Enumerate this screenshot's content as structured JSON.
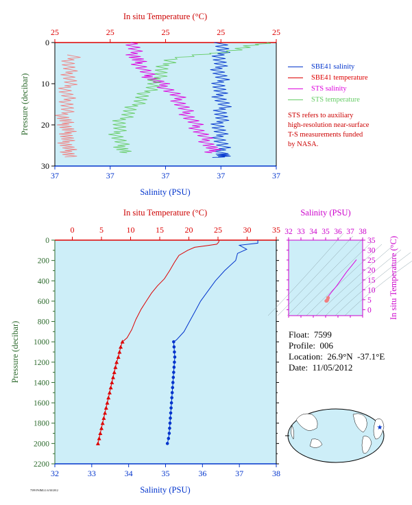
{
  "colors": {
    "plot_bg": "#cdeef8",
    "temperature": "#dd0000",
    "salinity": "#0033cc",
    "sts_salinity": "#dd00dd",
    "sts_temperature": "#66cc66",
    "sbe_temp_top": "#f08080",
    "pressure_label": "#2d6a2d",
    "ts_axis": "#cc00cc"
  },
  "top_panel": {
    "top_axis_title": "In situ Temperature (°C)",
    "top_ticks": [
      "25",
      "25",
      "25",
      "25",
      "25"
    ],
    "left_axis_title": "Pressure (decibar)",
    "left_ticks": [
      "0",
      "10",
      "20",
      "30"
    ],
    "bottom_axis_title": "Salinity (PSU)",
    "bottom_ticks": [
      "37",
      "37",
      "37",
      "37",
      "37"
    ]
  },
  "legend": [
    {
      "label": "SBE41 salinity",
      "color": "#0033cc"
    },
    {
      "label": "SBE41 temperature",
      "color": "#dd0000"
    },
    {
      "label": "STS salinity",
      "color": "#dd00dd"
    },
    {
      "label": "STS temperature",
      "color": "#66cc66"
    }
  ],
  "note": [
    "STS refers to auxiliary",
    "high-resolution near-surface",
    "T-S measurements funded",
    "by NASA."
  ],
  "info": {
    "float": "Float:  7599",
    "profile": "Profile:  006",
    "location": "Location:  26.9°N  -37.1°E",
    "date": "Date:  11/05/2012"
  },
  "footer_text": "7599 PSIMLG 6/30/2012",
  "chart_data": [
    {
      "type": "line",
      "title": "",
      "xlabel": "Salinity (PSU)",
      "ylabel": "Pressure (decibar)",
      "x2label": "In situ Temperature (°C)",
      "ylim": [
        0,
        30
      ],
      "y_inverted": true,
      "series": [
        {
          "name": "SBE41 salinity",
          "x_frac": [
            0.76,
            0.75,
            0.74,
            0.75,
            0.74,
            0.76,
            0.75,
            0.74,
            0.75,
            0.76,
            0.75
          ],
          "y": [
            0,
            3,
            6,
            9,
            12,
            15,
            18,
            21,
            24,
            27,
            28
          ]
        },
        {
          "name": "SBE41 temperature",
          "x_frac": [
            0.08,
            0.06,
            0.07,
            0.05,
            0.06,
            0.04,
            0.05,
            0.06,
            0.05,
            0.06,
            0.07
          ],
          "y": [
            3,
            6,
            9,
            12,
            15,
            18,
            20,
            22,
            24,
            26,
            28
          ]
        },
        {
          "name": "STS salinity",
          "x_frac": [
            0.35,
            0.36,
            0.38,
            0.42,
            0.48,
            0.55,
            0.58,
            0.62,
            0.66,
            0.7,
            0.72
          ],
          "y": [
            0,
            3,
            5,
            8,
            10,
            13,
            16,
            19,
            22,
            25,
            27
          ]
        },
        {
          "name": "STS temperature",
          "x_frac": [
            0.95,
            0.8,
            0.52,
            0.48,
            0.45,
            0.4,
            0.35,
            0.3,
            0.28,
            0.3,
            0.32
          ],
          "y": [
            0,
            2,
            4,
            7,
            10,
            13,
            16,
            19,
            22,
            25,
            27
          ]
        }
      ]
    },
    {
      "type": "line",
      "title": "",
      "xlabel": "Salinity (PSU)",
      "x2label": "In situ Temperature (°C)",
      "ylabel": "Pressure (decibar)",
      "xlim": [
        32,
        38
      ],
      "x2lim": [
        -3,
        35
      ],
      "ylim": [
        0,
        2200
      ],
      "y_inverted": true,
      "x_ticks": [
        "32",
        "33",
        "34",
        "35",
        "36",
        "37",
        "38"
      ],
      "x2_ticks": [
        "0",
        "5",
        "10",
        "15",
        "20",
        "25",
        "30",
        "35"
      ],
      "y_ticks": [
        "0",
        "200",
        "400",
        "600",
        "800",
        "1000",
        "1200",
        "1400",
        "1600",
        "1800",
        "2000",
        "2200"
      ],
      "series": [
        {
          "name": "Temperature",
          "axis": "top",
          "values": [
            [
              25.2,
              0
            ],
            [
              25.1,
              20
            ],
            [
              24.8,
              40
            ],
            [
              23,
              55
            ],
            [
              21,
              70
            ],
            [
              19.8,
              100
            ],
            [
              18.3,
              150
            ],
            [
              17.5,
              220
            ],
            [
              16.7,
              300
            ],
            [
              15.8,
              380
            ],
            [
              14.6,
              450
            ],
            [
              13.6,
              520
            ],
            [
              12.7,
              600
            ],
            [
              11.8,
              680
            ],
            [
              10.9,
              780
            ],
            [
              10.2,
              880
            ],
            [
              9.4,
              960
            ],
            [
              8.6,
              1000
            ],
            [
              8.3,
              1050
            ],
            [
              8.1,
              1100
            ],
            [
              7.9,
              1150
            ],
            [
              7.6,
              1200
            ],
            [
              7.4,
              1250
            ],
            [
              7.2,
              1300
            ],
            [
              7.0,
              1350
            ],
            [
              6.8,
              1400
            ],
            [
              6.6,
              1450
            ],
            [
              6.4,
              1500
            ],
            [
              6.2,
              1550
            ],
            [
              6.0,
              1600
            ],
            [
              5.8,
              1650
            ],
            [
              5.6,
              1700
            ],
            [
              5.4,
              1750
            ],
            [
              5.2,
              1800
            ],
            [
              5.0,
              1850
            ],
            [
              4.8,
              1900
            ],
            [
              4.6,
              1950
            ],
            [
              4.4,
              2000
            ]
          ]
        },
        {
          "name": "Salinity",
          "axis": "bottom",
          "values": [
            [
              37.5,
              0
            ],
            [
              37.5,
              30
            ],
            [
              37.0,
              50
            ],
            [
              37.2,
              90
            ],
            [
              36.95,
              130
            ],
            [
              36.9,
              200
            ],
            [
              36.75,
              250
            ],
            [
              36.6,
              300
            ],
            [
              36.35,
              400
            ],
            [
              36.15,
              500
            ],
            [
              35.95,
              600
            ],
            [
              35.8,
              700
            ],
            [
              35.65,
              800
            ],
            [
              35.5,
              900
            ],
            [
              35.3,
              980
            ],
            [
              35.22,
              1000
            ],
            [
              35.23,
              1050
            ],
            [
              35.24,
              1100
            ],
            [
              35.25,
              1150
            ],
            [
              35.24,
              1200
            ],
            [
              35.23,
              1250
            ],
            [
              35.22,
              1300
            ],
            [
              35.21,
              1350
            ],
            [
              35.2,
              1400
            ],
            [
              35.19,
              1450
            ],
            [
              35.18,
              1500
            ],
            [
              35.17,
              1550
            ],
            [
              35.16,
              1600
            ],
            [
              35.15,
              1650
            ],
            [
              35.14,
              1700
            ],
            [
              35.13,
              1750
            ],
            [
              35.12,
              1800
            ],
            [
              35.11,
              1850
            ],
            [
              35.1,
              1900
            ],
            [
              35.08,
              1950
            ],
            [
              35.05,
              2000
            ]
          ]
        }
      ]
    },
    {
      "type": "scatter",
      "title": "",
      "x2label": "Salinity (PSU)",
      "ylabel": "In situ Temperature (°C)",
      "xlim": [
        32,
        38
      ],
      "ylim": [
        -3,
        35
      ],
      "x_ticks": [
        "32",
        "33",
        "34",
        "35",
        "36",
        "37",
        "38"
      ],
      "y_ticks": [
        "0",
        "5",
        "10",
        "15",
        "20",
        "25",
        "30",
        "35"
      ],
      "series": [
        {
          "name": "T-S",
          "values": [
            [
              37.5,
              25.2
            ],
            [
              37.1,
              22
            ],
            [
              36.7,
              19
            ],
            [
              36.3,
              15.5
            ],
            [
              35.9,
              12
            ],
            [
              35.5,
              9
            ],
            [
              35.25,
              7
            ],
            [
              35.2,
              6
            ],
            [
              35.15,
              5
            ],
            [
              35.1,
              4.5
            ],
            [
              35.05,
              4.4
            ]
          ]
        }
      ]
    }
  ]
}
